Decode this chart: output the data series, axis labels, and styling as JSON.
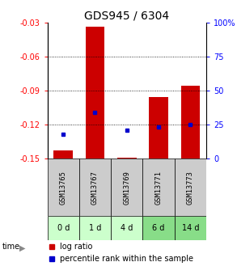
{
  "title": "GDS945 / 6304",
  "categories": [
    "GSM13765",
    "GSM13767",
    "GSM13769",
    "GSM13771",
    "GSM13773"
  ],
  "time_labels": [
    "0 d",
    "1 d",
    "4 d",
    "6 d",
    "14 d"
  ],
  "log_ratios": [
    -0.143,
    -0.034,
    -0.149,
    -0.096,
    -0.086
  ],
  "log_ratio_base": -0.15,
  "percentile_ranks": [
    18,
    34,
    21,
    23,
    25
  ],
  "ylim_left": [
    -0.15,
    -0.03
  ],
  "ylim_right": [
    0,
    100
  ],
  "yticks_left": [
    -0.15,
    -0.12,
    -0.09,
    -0.06,
    -0.03
  ],
  "yticks_right": [
    0,
    25,
    50,
    75,
    100
  ],
  "bar_color": "#cc0000",
  "marker_color": "#0000cc",
  "bar_width": 0.6,
  "background_gsm": "#cccccc",
  "background_time_colors": [
    "#ccffcc",
    "#ccffcc",
    "#ccffcc",
    "#88dd88",
    "#88dd88"
  ],
  "title_fontsize": 10,
  "tick_fontsize": 7,
  "legend_fontsize": 7
}
